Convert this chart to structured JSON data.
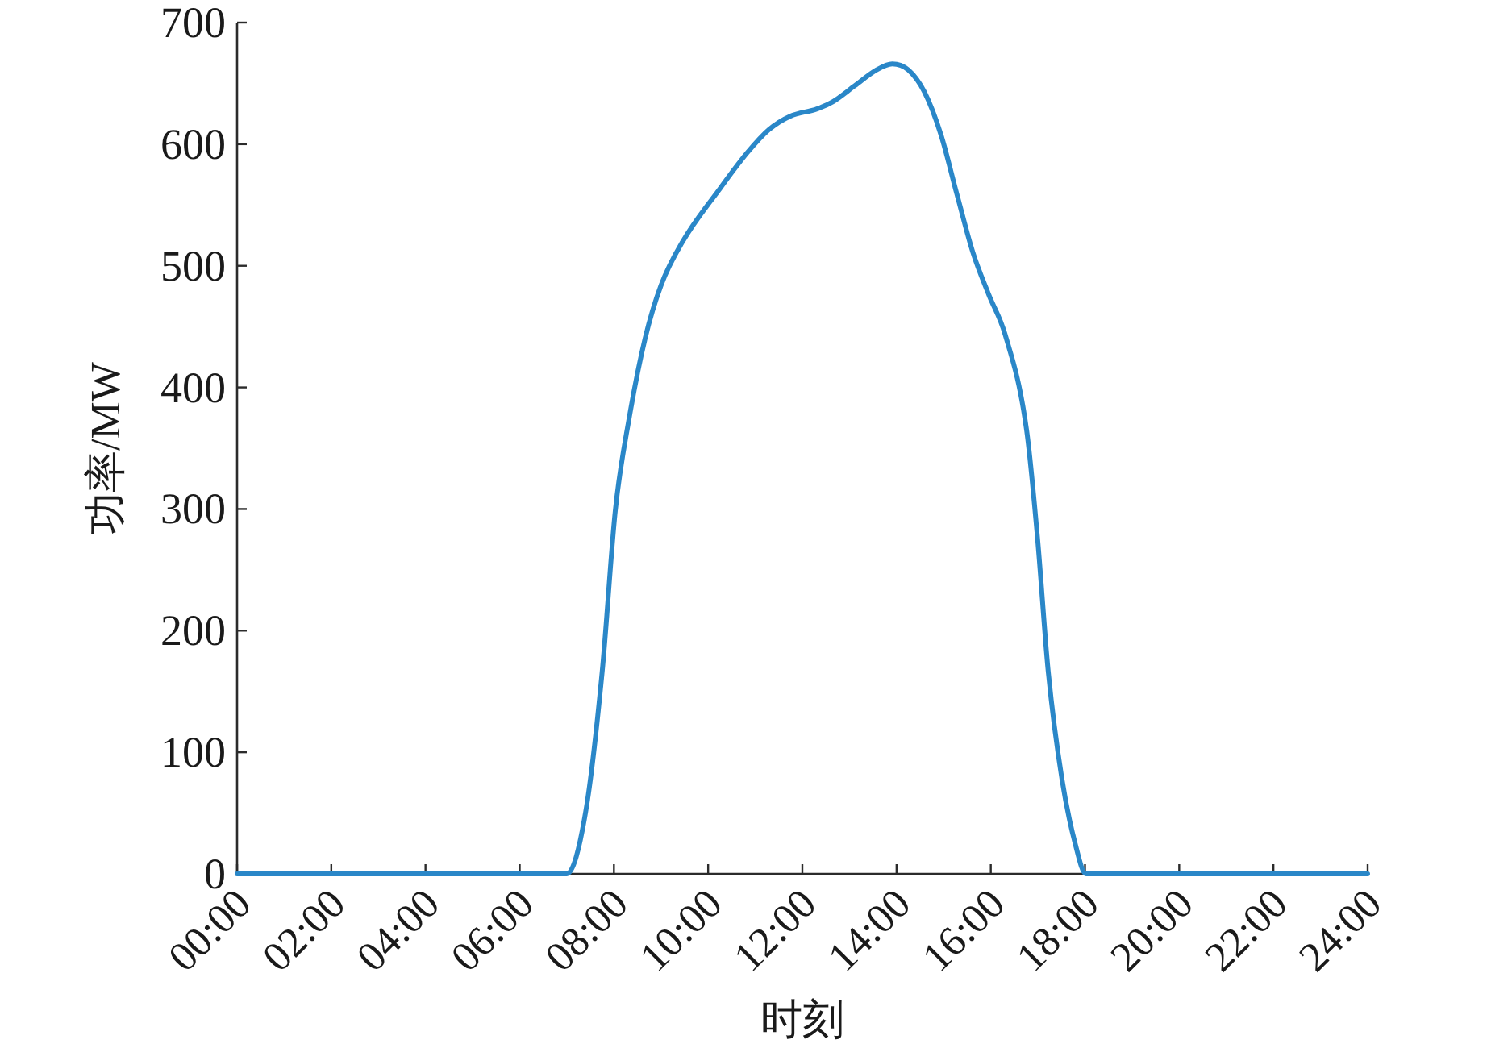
{
  "chart_data": {
    "type": "line",
    "xlabel": "时刻",
    "ylabel": "功率/MW",
    "x": [
      0,
      7.0,
      7.4,
      7.75,
      8.03,
      8.32,
      8.66,
      9.0,
      9.46,
      10.26,
      10.83,
      11.29,
      11.74,
      12.31,
      12.65,
      13.11,
      13.57,
      13.91,
      14.25,
      14.59,
      14.94,
      15.28,
      15.62,
      15.96,
      16.3,
      16.76,
      16.99,
      17.22,
      17.51,
      17.79,
      18.02,
      24
    ],
    "values": [
      0,
      0,
      51,
      166,
      299,
      374,
      440,
      484,
      520,
      564,
      593,
      612,
      623,
      629,
      635,
      648,
      661,
      666,
      661,
      643,
      608,
      559,
      511,
      476,
      444,
      365,
      277,
      166,
      78,
      25,
      0,
      0
    ],
    "color": "#2a87c8",
    "line_style": "solid",
    "xlim": [
      0,
      24
    ],
    "ylim": [
      0,
      700
    ],
    "xticks": [
      {
        "value": 0,
        "label": "00:00"
      },
      {
        "value": 2,
        "label": "02:00"
      },
      {
        "value": 4,
        "label": "04:00"
      },
      {
        "value": 6,
        "label": "06:00"
      },
      {
        "value": 8,
        "label": "08:00"
      },
      {
        "value": 10,
        "label": "10:00"
      },
      {
        "value": 12,
        "label": "12:00"
      },
      {
        "value": 14,
        "label": "14:00"
      },
      {
        "value": 16,
        "label": "16:00"
      },
      {
        "value": 18,
        "label": "18:00"
      },
      {
        "value": 20,
        "label": "20:00"
      },
      {
        "value": 22,
        "label": "22:00"
      },
      {
        "value": 24,
        "label": "24:00"
      }
    ],
    "yticks": [
      0,
      100,
      200,
      300,
      400,
      500,
      600,
      700
    ]
  }
}
